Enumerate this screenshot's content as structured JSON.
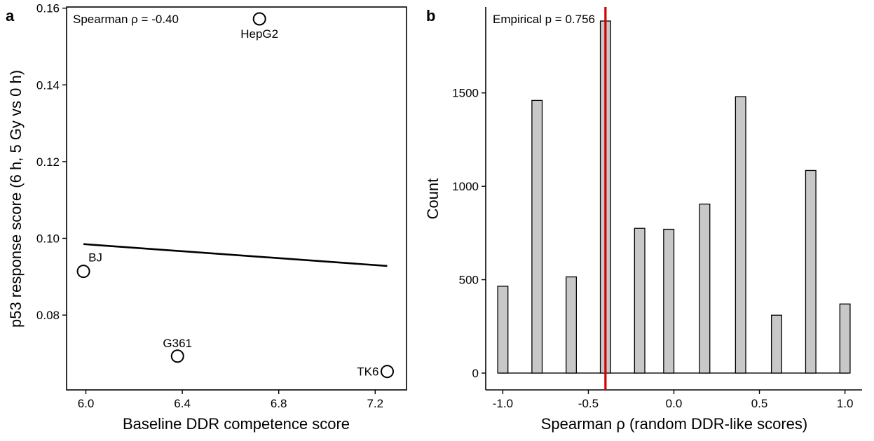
{
  "panels": {
    "a": {
      "label": "a",
      "annotation": "Spearman ρ = -0.40"
    },
    "b": {
      "label": "b",
      "annotation": "Empirical p = 0.756"
    }
  },
  "colors": {
    "axis": "#000000",
    "marker_stroke": "#000000",
    "marker_fill": "#ffffff",
    "bar_fill": "#c8c8c8",
    "bar_stroke": "#000000",
    "ref_line": "#d40000"
  },
  "chart_data": [
    {
      "panel": "a",
      "type": "scatter",
      "title": "",
      "xlabel": "Baseline DDR competence score",
      "ylabel": "p53 response score (6 h, 5 Gy vs 0 h)",
      "xlim": [
        5.92,
        7.33
      ],
      "ylim": [
        0.0605,
        0.1603
      ],
      "xticks": [
        6.0,
        6.4,
        6.8,
        7.2
      ],
      "xtick_labels": [
        "6.0",
        "6.4",
        "6.8",
        "7.2"
      ],
      "yticks": [
        0.08,
        0.1,
        0.12,
        0.14,
        0.16
      ],
      "ytick_labels": [
        "0.08",
        "0.10",
        "0.12",
        "0.14",
        "0.16"
      ],
      "points": [
        {
          "label": "BJ",
          "x": 5.99,
          "y": 0.0914
        },
        {
          "label": "G361",
          "x": 6.38,
          "y": 0.0693
        },
        {
          "label": "HepG2",
          "x": 6.72,
          "y": 0.1572
        },
        {
          "label": "TK6",
          "x": 7.25,
          "y": 0.0653
        }
      ],
      "fit_line": {
        "x": [
          5.99,
          7.25
        ],
        "y": [
          0.0985,
          0.0928
        ]
      },
      "annotation": "Spearman ρ = -0.40",
      "grid": false,
      "legend": "none"
    },
    {
      "panel": "b",
      "type": "bar",
      "title": "",
      "xlabel": "Spearman ρ (random DDR-like scores)",
      "ylabel": "Count",
      "xlim": [
        -1.1,
        1.1
      ],
      "ylim": [
        -90,
        1960
      ],
      "xticks": [
        -1.0,
        -0.5,
        0.0,
        0.5,
        1.0
      ],
      "xtick_labels": [
        "-1.0",
        "-0.5",
        "0.0",
        "0.5",
        "1.0"
      ],
      "yticks": [
        0,
        500,
        1000,
        1500
      ],
      "ytick_labels": [
        "0",
        "500",
        "1000",
        "1500"
      ],
      "bin_width": 0.06,
      "x": [
        -1.0,
        -0.8,
        -0.6,
        -0.4,
        -0.2,
        -0.03,
        0.18,
        0.39,
        0.6,
        0.8,
        1.0
      ],
      "values": [
        465,
        1460,
        515,
        1885,
        775,
        770,
        905,
        1480,
        310,
        1085,
        370
      ],
      "reference_line": {
        "x": -0.4
      },
      "annotation": "Empirical p = 0.756",
      "grid": false,
      "legend": "none"
    }
  ]
}
